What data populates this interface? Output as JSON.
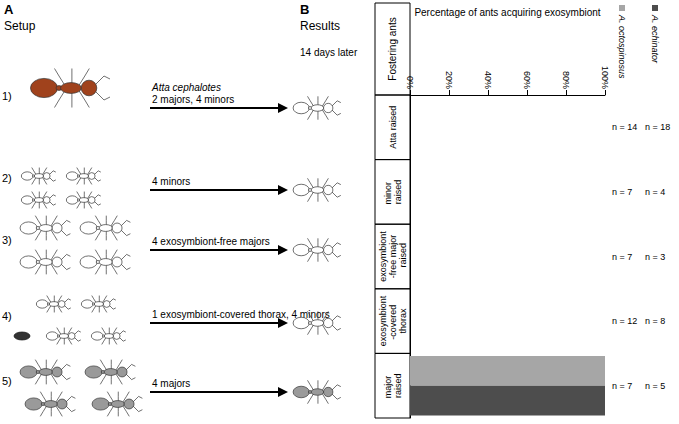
{
  "setup": {
    "panel_label": "A",
    "title": "Setup",
    "rows": [
      {
        "number": "1)",
        "lines": [
          "Atta cephalotes",
          "2 majors, 4 minors"
        ]
      },
      {
        "number": "2)",
        "lines": [
          "4 minors"
        ]
      },
      {
        "number": "3)",
        "lines": [
          "4 exosymbiont-free majors"
        ]
      },
      {
        "number": "4)",
        "lines": [
          "1 exosymbiont-covered thorax, 4 minors"
        ]
      },
      {
        "number": "5)",
        "lines": [
          "4 majors"
        ]
      }
    ]
  },
  "chart_data": {
    "type": "bar",
    "orientation": "horizontal",
    "panel_label": "B",
    "title": "Results",
    "subtitle": "14 days later",
    "x_label": "Percentage of ants acquiring exosymbiont",
    "y_label": "Fostering ants",
    "categories": [
      "Atta raised",
      "minor raised",
      "exosymbiont-free major raised",
      "exosymbiont-covered thorax",
      "major raised"
    ],
    "series": [
      {
        "name": "A. octospinosus",
        "color": "#a6a6a6",
        "values": [
          0,
          0,
          0,
          0,
          100
        ],
        "n": [
          14,
          7,
          7,
          12,
          7
        ]
      },
      {
        "name": "A. echinator",
        "color": "#4d4d4d",
        "values": [
          0,
          0,
          0,
          0,
          100
        ],
        "n": [
          18,
          4,
          3,
          8,
          5
        ]
      }
    ],
    "n_prefix": "n = ",
    "xlim": [
      0,
      100
    ],
    "xticks": [
      {
        "value": 0,
        "label": "0%"
      },
      {
        "value": 20,
        "label": "20%"
      },
      {
        "value": 40,
        "label": "40%"
      },
      {
        "value": 60,
        "label": "60%"
      },
      {
        "value": 80,
        "label": "80%"
      },
      {
        "value": 100,
        "label": "100%"
      }
    ],
    "grid": false,
    "legend": "right"
  }
}
